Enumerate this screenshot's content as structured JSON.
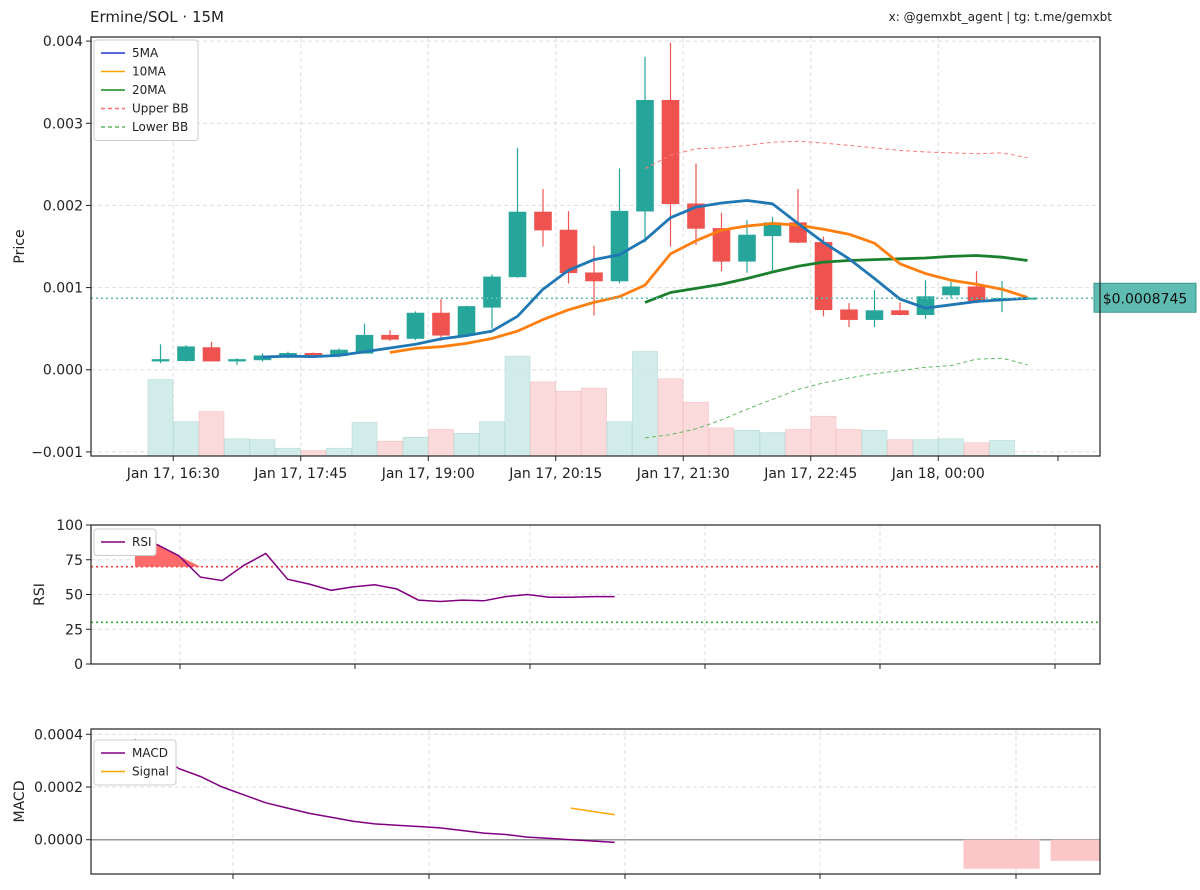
{
  "header": {
    "title": "Ermine/SOL · 15M",
    "credit": "x: @gemxbt_agent | tg: t.me/gemxbt"
  },
  "colors": {
    "up": "#26a69a",
    "down": "#ef5350",
    "ma5": "#1f77b4",
    "ma10": "#ff7f0e",
    "ma20": "#1a7f2e",
    "upper_bb": "#ff7a7a",
    "lower_bb": "#62b862",
    "rsi": "#800080",
    "macd": "#800080",
    "signal": "#ffa500",
    "price_tag_bg": "#5fbcb2"
  },
  "chart_data": [
    {
      "type": "candlestick",
      "ylabel": "Price",
      "ylim": [
        -0.00105,
        0.00405
      ],
      "yticks": [
        -0.001,
        0.0,
        0.001,
        0.002,
        0.003,
        0.004
      ],
      "ytick_labels": [
        "−0.001",
        "0.000",
        "0.001",
        "0.002",
        "0.003",
        "0.004"
      ],
      "xtick_labels": [
        "Jan 17, 16:30",
        "Jan 17, 17:45",
        "Jan 17, 19:00",
        "Jan 17, 20:15",
        "Jan 17, 21:30",
        "Jan 17, 22:45",
        "Jan 18, 00:00"
      ],
      "xtick_index": [
        0.5,
        5.5,
        10.5,
        15.5,
        20.5,
        25.5,
        30.5
      ],
      "grid": true,
      "legend_position": "top-left",
      "legend": [
        "5MA",
        "10MA",
        "20MA",
        "Upper BB",
        "Lower BB"
      ],
      "current_price": 0.00087,
      "current_price_label": "$0.0008745",
      "candles": [
        {
          "o": 0.000105,
          "h": 0.00031,
          "l": 8e-05,
          "c": 0.000125
        },
        {
          "o": 0.00011,
          "h": 0.0003,
          "l": 0.0001,
          "c": 0.00028
        },
        {
          "o": 0.00027,
          "h": 0.00034,
          "l": 0.0001,
          "c": 0.000105
        },
        {
          "o": 0.000105,
          "h": 0.00014,
          "l": 6e-05,
          "c": 0.000125
        },
        {
          "o": 0.00012,
          "h": 0.0002,
          "l": 0.0001,
          "c": 0.00017
        },
        {
          "o": 0.00016,
          "h": 0.00022,
          "l": 0.00014,
          "c": 0.0002
        },
        {
          "o": 0.0002,
          "h": 0.00021,
          "l": 0.00015,
          "c": 0.00016
        },
        {
          "o": 0.00017,
          "h": 0.00026,
          "l": 0.00015,
          "c": 0.00024
        },
        {
          "o": 0.0002,
          "h": 0.00056,
          "l": 0.0002,
          "c": 0.00042
        },
        {
          "o": 0.00042,
          "h": 0.00048,
          "l": 0.00035,
          "c": 0.00037
        },
        {
          "o": 0.00038,
          "h": 0.00071,
          "l": 0.00036,
          "c": 0.00069
        },
        {
          "o": 0.00069,
          "h": 0.00086,
          "l": 0.00035,
          "c": 0.00042
        },
        {
          "o": 0.00042,
          "h": 0.00078,
          "l": 0.0004,
          "c": 0.00077
        },
        {
          "o": 0.00076,
          "h": 0.00116,
          "l": 0.0005,
          "c": 0.00113
        },
        {
          "o": 0.00113,
          "h": 0.0027,
          "l": 0.00112,
          "c": 0.00192
        },
        {
          "o": 0.00192,
          "h": 0.0022,
          "l": 0.0015,
          "c": 0.0017
        },
        {
          "o": 0.0017,
          "h": 0.00193,
          "l": 0.00105,
          "c": 0.00118
        },
        {
          "o": 0.00118,
          "h": 0.00151,
          "l": 0.00066,
          "c": 0.00108
        },
        {
          "o": 0.00108,
          "h": 0.00245,
          "l": 0.00105,
          "c": 0.00193
        },
        {
          "o": 0.00193,
          "h": 0.00381,
          "l": 0.00155,
          "c": 0.00328
        },
        {
          "o": 0.00328,
          "h": 0.00398,
          "l": 0.0015,
          "c": 0.00202
        },
        {
          "o": 0.00202,
          "h": 0.00251,
          "l": 0.00152,
          "c": 0.00172
        },
        {
          "o": 0.00172,
          "h": 0.00191,
          "l": 0.0012,
          "c": 0.00132
        },
        {
          "o": 0.00132,
          "h": 0.00182,
          "l": 0.00118,
          "c": 0.00164
        },
        {
          "o": 0.00163,
          "h": 0.00186,
          "l": 0.00118,
          "c": 0.00179
        },
        {
          "o": 0.00179,
          "h": 0.0022,
          "l": 0.00154,
          "c": 0.00155
        },
        {
          "o": 0.00155,
          "h": 0.00162,
          "l": 0.00065,
          "c": 0.00073
        },
        {
          "o": 0.00073,
          "h": 0.00081,
          "l": 0.00052,
          "c": 0.00061
        },
        {
          "o": 0.00061,
          "h": 0.00097,
          "l": 0.00052,
          "c": 0.00072
        },
        {
          "o": 0.00072,
          "h": 0.00082,
          "l": 0.00066,
          "c": 0.00067
        },
        {
          "o": 0.00067,
          "h": 0.00109,
          "l": 0.00062,
          "c": 0.00089
        },
        {
          "o": 0.00091,
          "h": 0.00107,
          "l": 0.00087,
          "c": 0.00101
        },
        {
          "o": 0.00101,
          "h": 0.0012,
          "l": 0.00081,
          "c": 0.00084
        },
        {
          "o": 0.00085,
          "h": 0.00108,
          "l": 0.0007,
          "c": 0.00087
        },
        {
          "o": 0.00087,
          "h": 0.00089,
          "l": 0.00085,
          "c": 0.000875
        }
      ],
      "volume": [
        0.98,
        0.44,
        0.57,
        0.22,
        0.21,
        0.1,
        0.07,
        0.1,
        0.43,
        0.19,
        0.24,
        0.34,
        0.29,
        0.44,
        1.28,
        0.95,
        0.83,
        0.87,
        0.44,
        1.34,
        0.99,
        0.69,
        0.36,
        0.33,
        0.3,
        0.34,
        0.51,
        0.34,
        0.33,
        0.21,
        0.21,
        0.22,
        0.17,
        0.2,
        0.01
      ],
      "ma5": [
        null,
        null,
        null,
        null,
        0.000155,
        0.000165,
        0.00016,
        0.000175,
        0.00022,
        0.000265,
        0.00031,
        0.000375,
        0.000415,
        0.00047,
        0.00065,
        0.00098,
        0.00121,
        0.00134,
        0.0014,
        0.00158,
        0.00185,
        0.00198,
        0.00203,
        0.00206,
        0.00202,
        0.00178,
        0.00155,
        0.00135,
        0.00111,
        0.00086,
        0.00075,
        0.00079,
        0.00083,
        0.00085,
        0.00087
      ],
      "ma10": [
        null,
        null,
        null,
        null,
        null,
        null,
        null,
        null,
        null,
        0.00021,
        0.00026,
        0.00028,
        0.00032,
        0.00038,
        0.00047,
        0.00061,
        0.00073,
        0.00082,
        0.00089,
        0.00103,
        0.00141,
        0.00157,
        0.0017,
        0.00175,
        0.00178,
        0.00176,
        0.00171,
        0.00165,
        0.00154,
        0.00129,
        0.00117,
        0.00109,
        0.00104,
        0.00098,
        0.00088
      ],
      "ma20": [
        null,
        null,
        null,
        null,
        null,
        null,
        null,
        null,
        null,
        null,
        null,
        null,
        null,
        null,
        null,
        null,
        null,
        null,
        null,
        0.00082,
        0.00094,
        0.00099,
        0.00104,
        0.00111,
        0.00119,
        0.00126,
        0.00131,
        0.00133,
        0.00134,
        0.00135,
        0.00136,
        0.00138,
        0.00139,
        0.00137,
        0.00133
      ],
      "upper_bb": [
        null,
        null,
        null,
        null,
        null,
        null,
        null,
        null,
        null,
        null,
        null,
        null,
        null,
        null,
        null,
        null,
        null,
        null,
        null,
        0.00245,
        0.00261,
        0.00269,
        0.0027,
        0.00273,
        0.00277,
        0.00278,
        0.00276,
        0.00273,
        0.0027,
        0.00267,
        0.00265,
        0.00264,
        0.00263,
        0.00264,
        0.00258
      ],
      "lower_bb": [
        null,
        null,
        null,
        null,
        null,
        null,
        null,
        null,
        null,
        null,
        null,
        null,
        null,
        null,
        null,
        null,
        null,
        null,
        null,
        -0.00083,
        -0.00079,
        -0.00072,
        -0.00061,
        -0.00048,
        -0.00036,
        -0.00024,
        -0.00016,
        -0.0001,
        -5e-05,
        -1e-05,
        3e-05,
        5e-05,
        0.00013,
        0.00014,
        6e-05
      ]
    },
    {
      "type": "line",
      "ylabel": "RSI",
      "ylim": [
        0,
        100
      ],
      "yticks": [
        0,
        25,
        50,
        75,
        100
      ],
      "ytick_labels": [
        "0",
        "25",
        "50",
        "75",
        "100"
      ],
      "grid": true,
      "legend_position": "top-left",
      "legend": [
        "RSI"
      ],
      "overbought": 70,
      "oversold": 30,
      "series": [
        {
          "name": "RSI",
          "values": [
            null,
            null,
            null,
            null,
            null,
            null,
            null,
            null,
            null,
            null,
            null,
            null,
            null,
            null,
            null,
            null,
            null,
            null,
            null,
            null,
            null,
            null,
            null,
            null,
            null,
            null,
            null,
            null,
            null,
            null,
            null,
            null,
            null,
            null,
            null
          ]
        }
      ],
      "rsi_x": [
        0,
        2,
        4,
        6,
        8,
        10,
        12,
        14,
        16,
        18,
        20,
        22,
        24,
        26,
        28,
        30,
        32,
        34,
        36,
        38,
        40,
        42,
        44
      ],
      "rsi_values": [
        79,
        86,
        78,
        62.5,
        60,
        71,
        79.5,
        61,
        57.5,
        53,
        55.5,
        57,
        54,
        46,
        45,
        46,
        45.5,
        48.5,
        50,
        48,
        48,
        48.5,
        48.5
      ]
    },
    {
      "type": "line",
      "ylabel": "MACD",
      "ylim": [
        -0.00013,
        0.00042
      ],
      "yticks": [
        0.0,
        0.0002,
        0.0004
      ],
      "ytick_labels": [
        "0.0000",
        "0.0002",
        "0.0004"
      ],
      "grid": true,
      "legend_position": "top-left",
      "legend": [
        "MACD",
        "Signal"
      ],
      "macd_x": [
        0,
        2,
        4,
        6,
        8,
        10,
        12,
        14,
        16,
        18,
        20,
        22,
        24,
        26,
        28,
        30,
        32,
        34,
        36,
        38,
        40,
        42,
        44
      ],
      "macd_values": [
        0.00038,
        0.00033,
        0.00027,
        0.00024,
        0.0002,
        0.00017,
        0.00014,
        0.00012,
        0.0001,
        8.5e-05,
        7e-05,
        6e-05,
        5.5e-05,
        5e-05,
        4.5e-05,
        3.5e-05,
        2.5e-05,
        2e-05,
        1e-05,
        5e-06,
        0.0,
        -5e-06,
        -1e-05
      ],
      "signal_x": [
        40,
        44
      ],
      "signal_values": [
        0.00012,
        9.5e-05
      ],
      "hist": [
        {
          "x0": 38,
          "x1": 41.5,
          "v": -0.00011
        },
        {
          "x0": 42,
          "x1": 45.5,
          "v": -8e-05
        }
      ]
    }
  ]
}
